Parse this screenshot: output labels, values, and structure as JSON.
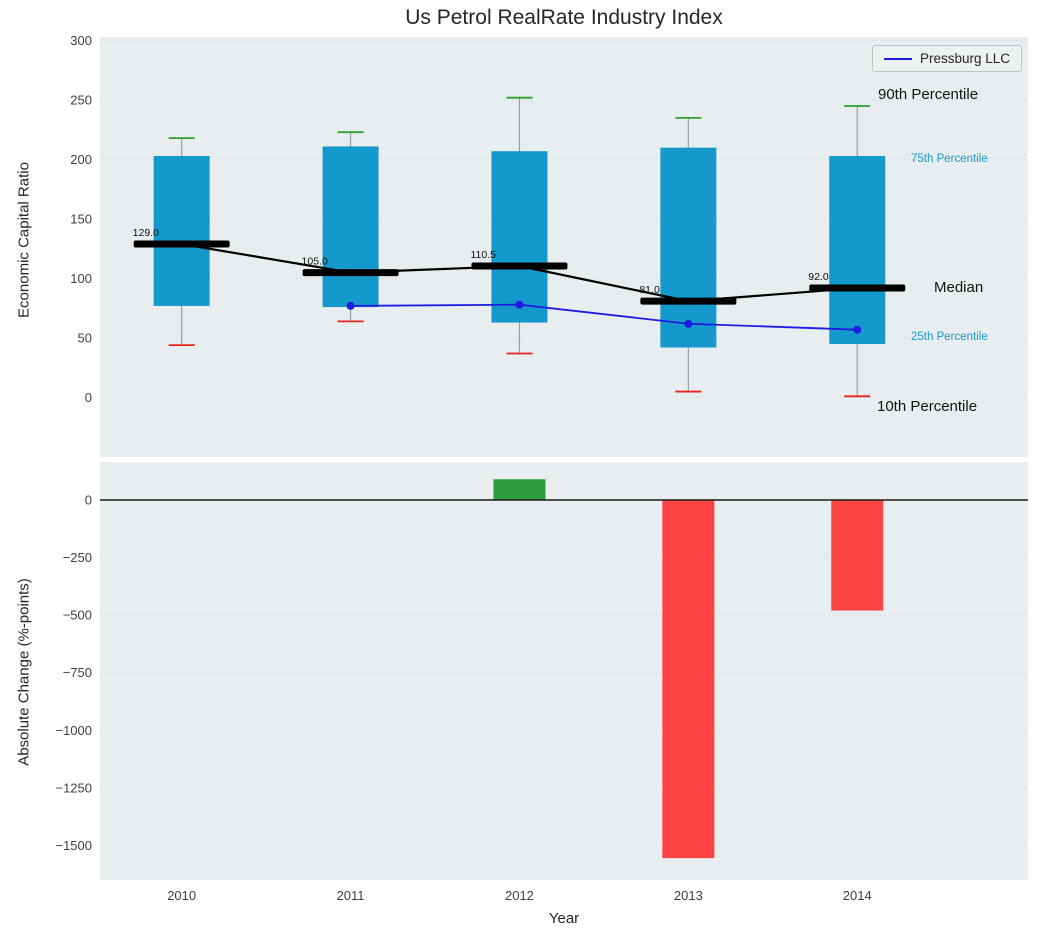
{
  "chart_data": [
    {
      "type": "boxplot",
      "title": "Us Petrol RealRate Industry Index",
      "ylabel": "Economic Capital Ratio",
      "ylim": [
        -50,
        303
      ],
      "yticks": [
        300,
        250,
        200,
        150,
        100,
        50,
        0
      ],
      "categories": [
        "2010",
        "2011",
        "2012",
        "2013",
        "2014"
      ],
      "grid": true,
      "legend_position": "upper right",
      "colors": {
        "box": "#1599cd",
        "whisker": "#9aa0a2",
        "cap_90th": "#2ca02c",
        "cap_10th": "#e8241f",
        "median": "#000000"
      },
      "boxes": [
        {
          "category": "2010",
          "p10": 44,
          "p25": 77,
          "median": 129.0,
          "p75": 203,
          "p90": 218
        },
        {
          "category": "2011",
          "p10": 64,
          "p25": 76,
          "median": 105.0,
          "p75": 211,
          "p90": 223
        },
        {
          "category": "2012",
          "p10": 37,
          "p25": 63,
          "median": 110.5,
          "p75": 207,
          "p90": 252
        },
        {
          "category": "2013",
          "p10": 5,
          "p25": 42,
          "median": 81.0,
          "p75": 210,
          "p90": 235
        },
        {
          "category": "2014",
          "p10": 1,
          "p25": 45,
          "median": 92.0,
          "p75": 203,
          "p90": 245
        }
      ],
      "median_labels": [
        "129.0",
        "105.0",
        "110.5",
        "81.0",
        "92.0"
      ],
      "series": [
        {
          "name": "Pressburg LLC",
          "color": "#1d1de0",
          "x": [
            "2011",
            "2012",
            "2013",
            "2014"
          ],
          "values": [
            77,
            78,
            62,
            57
          ]
        }
      ],
      "percentile_labels": {
        "p90": "90th Percentile",
        "p75": "75th Percentile",
        "median": "Median",
        "p25": "25th Percentile",
        "p10": "10th Percentile"
      }
    },
    {
      "type": "bar",
      "ylabel": "Absolute Change (%-points)",
      "xlabel": "Year",
      "ylim": [
        -1650,
        165
      ],
      "yticks": [
        0,
        -250,
        -500,
        -750,
        -1000,
        -1250,
        -1500
      ],
      "categories": [
        "2010",
        "2011",
        "2012",
        "2013",
        "2014"
      ],
      "values": [
        0,
        0,
        90,
        -1555,
        -480
      ],
      "colors": {
        "positive": "#2f9e3d",
        "negative": "#fb4343",
        "zero_line": "#1a1a1a"
      }
    }
  ]
}
